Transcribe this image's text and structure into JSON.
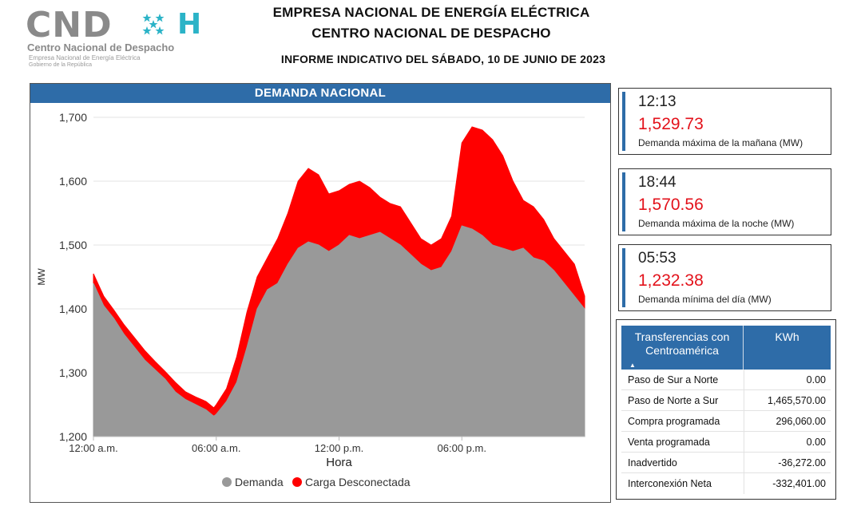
{
  "logo": {
    "text": "CND",
    "tagline": "Centro Nacional de Despacho",
    "sub1": "Empresa Nacional de Energía Eléctrica",
    "sub2": "Gobierno de la República"
  },
  "header": {
    "line1": "EMPRESA NACIONAL DE ENERGÍA ELÉCTRICA",
    "line2": "CENTRO NACIONAL DE DESPACHO",
    "line3": "INFORME INDICATIVO DEL SÁBADO, 10 DE JUNIO DE 2023"
  },
  "chart_panel_title": "DEMANDA NACIONAL",
  "chart_data": {
    "type": "area",
    "title": "DEMANDA NACIONAL",
    "xlabel": "Hora",
    "ylabel": "MW",
    "ylim": [
      1200,
      1700
    ],
    "yticks": [
      "1,200",
      "1,300",
      "1,400",
      "1,500",
      "1,600",
      "1,700"
    ],
    "xticks": [
      {
        "hour": 0,
        "label": "12:00 a.m."
      },
      {
        "hour": 6,
        "label": "06:00 a.m."
      },
      {
        "hour": 12,
        "label": "12:00 p.m."
      },
      {
        "hour": 18,
        "label": "06:00 p.m."
      }
    ],
    "xlim": [
      0,
      24
    ],
    "grid": true,
    "legend_position": "bottom",
    "series": [
      {
        "name": "Demanda",
        "color": "#999999",
        "x": [
          0,
          0.5,
          1,
          1.5,
          2,
          2.5,
          3,
          3.5,
          4,
          4.5,
          5,
          5.5,
          5.88,
          6,
          6.5,
          7,
          7.5,
          8,
          8.5,
          9,
          9.5,
          10,
          10.5,
          11,
          11.5,
          12,
          12.5,
          13,
          13.5,
          14,
          14.5,
          15,
          15.5,
          16,
          16.5,
          17,
          17.5,
          18,
          18.5,
          19,
          19.5,
          20,
          20.5,
          21,
          21.5,
          22,
          22.5,
          23,
          23.5,
          24
        ],
        "values": [
          1440,
          1405,
          1385,
          1360,
          1340,
          1320,
          1305,
          1290,
          1270,
          1258,
          1250,
          1242,
          1232,
          1235,
          1255,
          1285,
          1340,
          1400,
          1430,
          1440,
          1470,
          1495,
          1505,
          1500,
          1490,
          1500,
          1515,
          1510,
          1515,
          1520,
          1510,
          1500,
          1485,
          1470,
          1460,
          1465,
          1490,
          1530,
          1525,
          1515,
          1500,
          1495,
          1490,
          1495,
          1480,
          1475,
          1460,
          1440,
          1420,
          1400
        ]
      },
      {
        "name": "Carga Desconectada",
        "color": "#ff0000",
        "x": [
          0,
          0.5,
          1,
          1.5,
          2,
          2.5,
          3,
          3.5,
          4,
          4.5,
          5,
          5.5,
          5.88,
          6,
          6.5,
          7,
          7.5,
          8,
          8.5,
          9,
          9.5,
          10,
          10.5,
          11,
          11.5,
          12,
          12.5,
          13,
          13.5,
          14,
          14.5,
          15,
          15.5,
          16,
          16.5,
          17,
          17.5,
          18,
          18.5,
          19,
          19.5,
          20,
          20.5,
          21,
          21.5,
          22,
          22.5,
          23,
          23.5,
          24
        ],
        "values": [
          1455,
          1420,
          1398,
          1375,
          1355,
          1335,
          1318,
          1302,
          1285,
          1270,
          1262,
          1255,
          1245,
          1250,
          1275,
          1325,
          1395,
          1450,
          1480,
          1510,
          1550,
          1600,
          1620,
          1610,
          1580,
          1585,
          1595,
          1600,
          1590,
          1575,
          1565,
          1560,
          1535,
          1510,
          1500,
          1510,
          1545,
          1660,
          1685,
          1680,
          1665,
          1640,
          1600,
          1570,
          1560,
          1540,
          1510,
          1490,
          1470,
          1420
        ]
      }
    ]
  },
  "stats": [
    {
      "time": "12:13",
      "value": "1,529.73",
      "label": "Demanda máxima de la mañana (MW)"
    },
    {
      "time": "18:44",
      "value": "1,570.56",
      "label": "Demanda máxima de la noche (MW)"
    },
    {
      "time": "05:53",
      "value": "1,232.38",
      "label": "Demanda mínima del día (MW)"
    }
  ],
  "transfers": {
    "col1": "Transferencias con Centroamérica",
    "col2": "KWh",
    "sort_icon": "sort-up-icon",
    "rows": [
      {
        "label": "Paso de Sur a Norte",
        "value": "0.00"
      },
      {
        "label": "Paso de Norte a Sur",
        "value": "1,465,570.00"
      },
      {
        "label": "Compra programada",
        "value": "296,060.00"
      },
      {
        "label": "Venta programada",
        "value": "0.00"
      },
      {
        "label": "Inadvertido",
        "value": "-36,272.00"
      },
      {
        "label": "Interconexión Neta",
        "value": "-332,401.00"
      }
    ]
  },
  "colors": {
    "accent_blue": "#2e6ca8",
    "value_red": "#e3121b",
    "demand_gray": "#999999",
    "load_red": "#ff0000"
  }
}
